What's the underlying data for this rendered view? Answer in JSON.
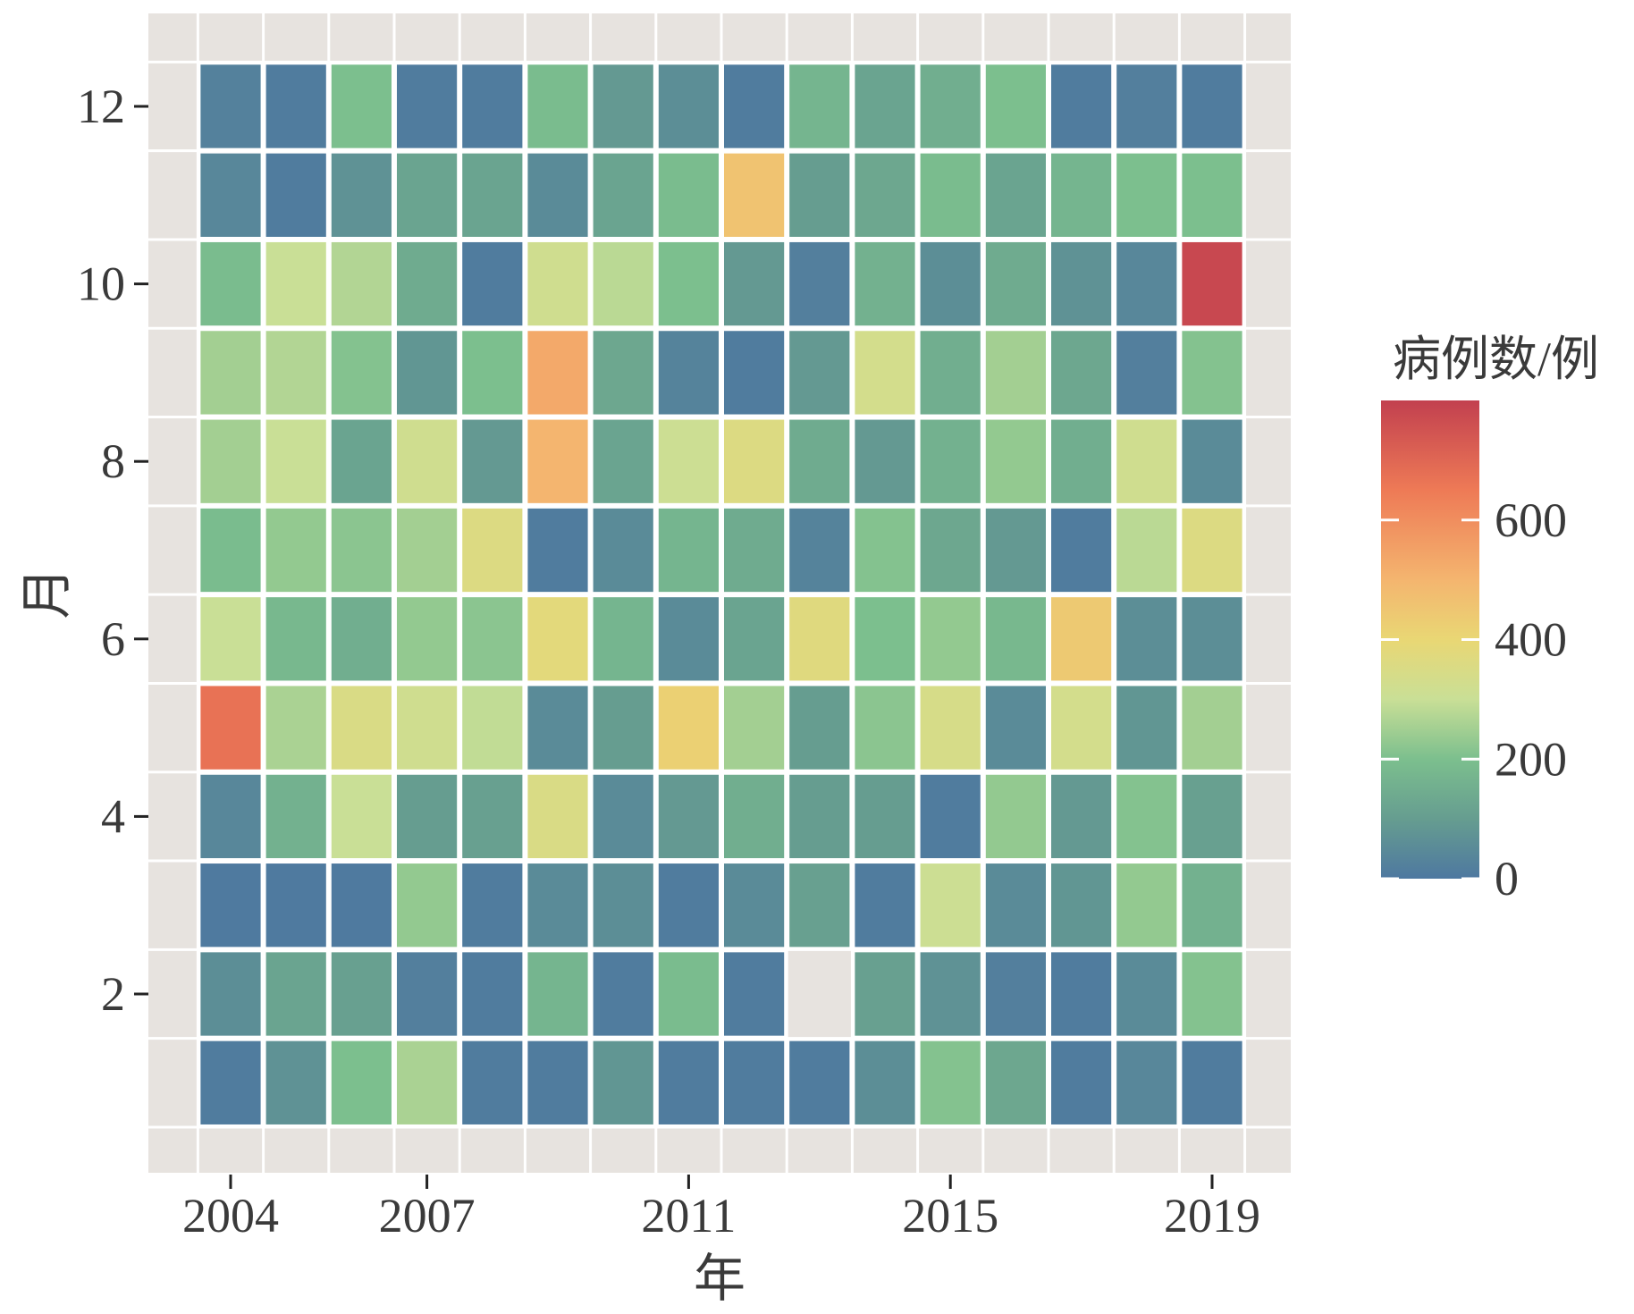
{
  "chart_data": {
    "type": "heatmap",
    "xlabel": "年",
    "ylabel": "月",
    "legend_title": "病例数/例",
    "legend_position": "right",
    "x_ticks": [
      2004,
      2007,
      2011,
      2015,
      2019
    ],
    "y_ticks": [
      2,
      4,
      6,
      8,
      10,
      12
    ],
    "xlim": [
      2003.5,
      2019.5
    ],
    "ylim": [
      0.5,
      12.5
    ],
    "grid": true,
    "color_scale": {
      "domain": [
        0,
        800
      ],
      "ticks": [
        0,
        200,
        400,
        600
      ],
      "stops": [
        {
          "value": 0,
          "color": "#4e78a0"
        },
        {
          "value": 100,
          "color": "#669d90"
        },
        {
          "value": 200,
          "color": "#7cbf8e"
        },
        {
          "value": 300,
          "color": "#c9df96"
        },
        {
          "value": 400,
          "color": "#e9d774"
        },
        {
          "value": 500,
          "color": "#f4b56f"
        },
        {
          "value": 650,
          "color": "#ee7a56"
        },
        {
          "value": 800,
          "color": "#c2404f"
        }
      ]
    },
    "years": [
      2004,
      2005,
      2006,
      2007,
      2008,
      2009,
      2010,
      2011,
      2012,
      2013,
      2014,
      2015,
      2016,
      2017,
      2018,
      2019
    ],
    "months": [
      1,
      2,
      3,
      4,
      5,
      6,
      7,
      8,
      9,
      10,
      11,
      12
    ],
    "values": [
      [
        10,
        60,
        5,
        40,
        670,
        300,
        190,
        250,
        250,
        190,
        40,
        25
      ],
      [
        70,
        120,
        5,
        160,
        260,
        180,
        230,
        300,
        270,
        300,
        10,
        10
      ],
      [
        200,
        110,
        5,
        300,
        350,
        150,
        220,
        120,
        210,
        270,
        70,
        200
      ],
      [
        260,
        20,
        230,
        100,
        320,
        230,
        250,
        320,
        80,
        140,
        120,
        10
      ],
      [
        10,
        10,
        10,
        110,
        290,
        220,
        360,
        90,
        200,
        10,
        120,
        10
      ],
      [
        10,
        170,
        50,
        350,
        50,
        380,
        10,
        500,
        530,
        320,
        50,
        190
      ],
      [
        80,
        10,
        60,
        50,
        100,
        170,
        50,
        120,
        130,
        280,
        120,
        90
      ],
      [
        10,
        190,
        10,
        90,
        420,
        50,
        170,
        310,
        30,
        200,
        190,
        60
      ],
      [
        10,
        10,
        50,
        150,
        250,
        120,
        140,
        360,
        10,
        90,
        460,
        10
      ],
      [
        10,
        null,
        110,
        100,
        100,
        370,
        30,
        140,
        90,
        20,
        100,
        170
      ],
      [
        60,
        110,
        10,
        100,
        220,
        200,
        210,
        90,
        330,
        160,
        130,
        120
      ],
      [
        210,
        70,
        310,
        10,
        340,
        230,
        130,
        160,
        150,
        60,
        190,
        150
      ],
      [
        130,
        20,
        50,
        230,
        50,
        180,
        90,
        230,
        250,
        140,
        120,
        200
      ],
      [
        10,
        10,
        80,
        90,
        330,
        440,
        10,
        150,
        130,
        70,
        170,
        10
      ],
      [
        40,
        50,
        230,
        210,
        80,
        60,
        280,
        320,
        20,
        40,
        200,
        20
      ],
      [
        10,
        210,
        160,
        110,
        250,
        60,
        360,
        50,
        210,
        780,
        200,
        10
      ]
    ]
  }
}
